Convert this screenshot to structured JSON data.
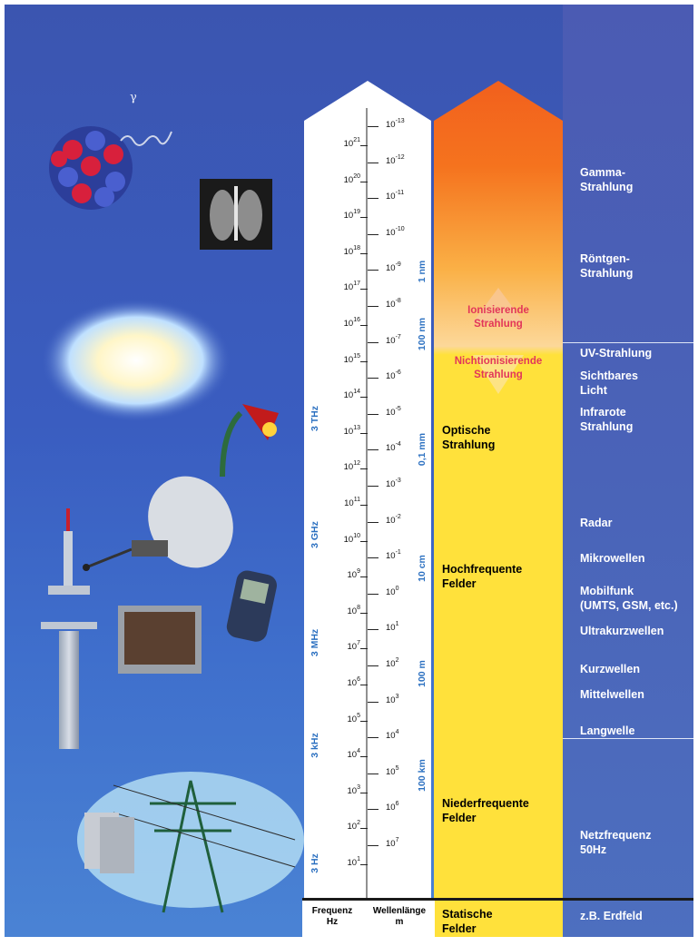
{
  "frequencies": [
    {
      "base": "10",
      "exp": "21"
    },
    {
      "base": "10",
      "exp": "20"
    },
    {
      "base": "10",
      "exp": "19"
    },
    {
      "base": "10",
      "exp": "18"
    },
    {
      "base": "10",
      "exp": "17"
    },
    {
      "base": "10",
      "exp": "16"
    },
    {
      "base": "10",
      "exp": "15"
    },
    {
      "base": "10",
      "exp": "14"
    },
    {
      "base": "10",
      "exp": "13"
    },
    {
      "base": "10",
      "exp": "12"
    },
    {
      "base": "10",
      "exp": "11"
    },
    {
      "base": "10",
      "exp": "10"
    },
    {
      "base": "10",
      "exp": "9"
    },
    {
      "base": "10",
      "exp": "8"
    },
    {
      "base": "10",
      "exp": "7"
    },
    {
      "base": "10",
      "exp": "6"
    },
    {
      "base": "10",
      "exp": "5"
    },
    {
      "base": "10",
      "exp": "4"
    },
    {
      "base": "10",
      "exp": "3"
    },
    {
      "base": "10",
      "exp": "2"
    },
    {
      "base": "10",
      "exp": "1"
    }
  ],
  "wavelengths": [
    {
      "base": "10",
      "exp": "-13"
    },
    {
      "base": "10",
      "exp": "-12"
    },
    {
      "base": "10",
      "exp": "-11"
    },
    {
      "base": "10",
      "exp": "-10"
    },
    {
      "base": "10",
      "exp": "-9"
    },
    {
      "base": "10",
      "exp": "-8"
    },
    {
      "base": "10",
      "exp": "-7"
    },
    {
      "base": "10",
      "exp": "-6"
    },
    {
      "base": "10",
      "exp": "-5"
    },
    {
      "base": "10",
      "exp": "-4"
    },
    {
      "base": "10",
      "exp": "-3"
    },
    {
      "base": "10",
      "exp": "-2"
    },
    {
      "base": "10",
      "exp": "-1"
    },
    {
      "base": "10",
      "exp": "0"
    },
    {
      "base": "10",
      "exp": "1"
    },
    {
      "base": "10",
      "exp": "2"
    },
    {
      "base": "10",
      "exp": "3"
    },
    {
      "base": "10",
      "exp": "4"
    },
    {
      "base": "10",
      "exp": "5"
    },
    {
      "base": "10",
      "exp": "6"
    },
    {
      "base": "10",
      "exp": "7"
    }
  ],
  "freq_markers": [
    "3 THz",
    "3 GHz",
    "3 MHz",
    "3 kHz",
    "3 Hz"
  ],
  "wl_markers": [
    "1 nm",
    "100 nm",
    "0,1 mm",
    "10 cm",
    "100 m",
    "100 km"
  ],
  "ionizing": {
    "label": "Ionisierende\nStrahlung",
    "color": "#e2365a"
  },
  "nonionizing": {
    "label": "Nichtionisierende\nStrahlung",
    "color": "#e2365a"
  },
  "bands": [
    {
      "label": "Optische\nStrahlung"
    },
    {
      "label": "Hochfrequente\nFelder"
    },
    {
      "label": "Niederfrequente\nFelder"
    }
  ],
  "footer": {
    "freq_label": "Frequenz\nHz",
    "wl_label": "Wellenlänge\nm",
    "static": "Statische\nFelder",
    "example": "z.B. Erdfeld"
  },
  "right_labels": [
    "Gamma-\nStrahlung",
    "Röntgen-\nStrahlung",
    "UV-Strahlung",
    "Sichtbares\nLicht",
    "Infrarote\nStrahlung",
    "Radar",
    "Mikrowellen",
    "Mobilfunk\n(UMTS, GSM, etc.)",
    "Ultrakurzwellen",
    "Kurzwellen",
    "Mittelwellen",
    "Langwelle",
    "Netzfrequenz\n50Hz"
  ],
  "gamma_symbol": "γ",
  "colors": {
    "background": "#3a5dc0",
    "right_column": "#4a63b8",
    "yellow": "#ffe13b",
    "orange": "#f5731e",
    "wl_marker": "#2a6fc0",
    "label": "#ffffff"
  }
}
